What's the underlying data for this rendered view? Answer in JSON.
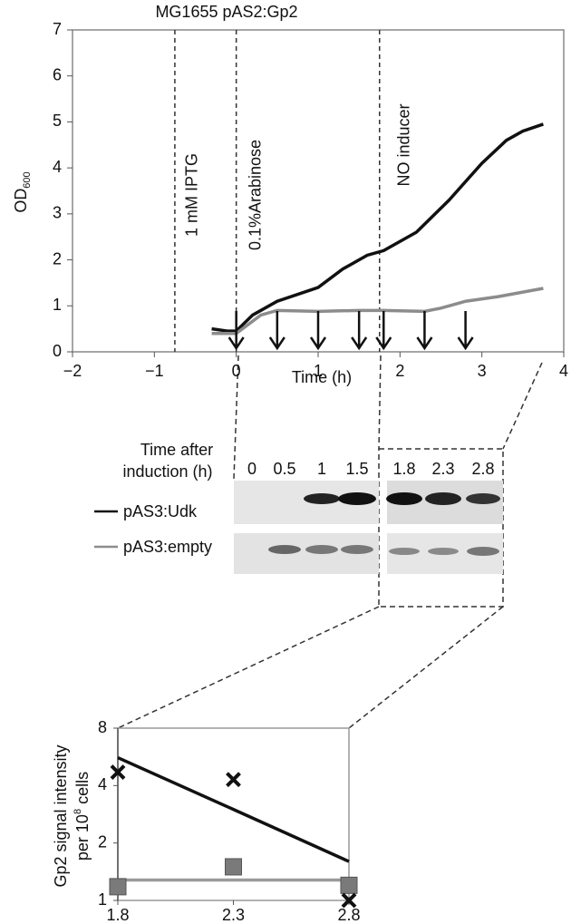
{
  "chart_data": [
    {
      "type": "line",
      "title": "MG1655 pAS2:Gp2",
      "x_label": "Time (h)",
      "y_label": "OD",
      "y_label_subscript": "600",
      "xlim": [
        -2,
        4
      ],
      "xticks": [
        {
          "value": -2,
          "label": "−2"
        },
        {
          "value": -1,
          "label": "−1"
        },
        0,
        1,
        2,
        3,
        4
      ],
      "ylim": [
        0,
        7
      ],
      "yticks": [
        0,
        1,
        2,
        3,
        4,
        5,
        6,
        7
      ],
      "series": [
        {
          "name": "pAS3:Udk",
          "color": "#111111",
          "x": [
            -0.3,
            -0.1,
            0,
            0.2,
            0.5,
            1,
            1.3,
            1.6,
            1.8,
            2.2,
            2.6,
            3,
            3.3,
            3.5,
            3.75
          ],
          "values": [
            0.5,
            0.45,
            0.45,
            0.8,
            1.1,
            1.4,
            1.8,
            2.1,
            2.2,
            2.6,
            3.3,
            4.1,
            4.6,
            4.8,
            4.95
          ]
        },
        {
          "name": "pAS3:empty",
          "color": "#8c8c8c",
          "x": [
            -0.3,
            0,
            0.3,
            0.5,
            1,
            1.5,
            1.8,
            2.3,
            2.5,
            2.8,
            3.2,
            3.75
          ],
          "values": [
            0.4,
            0.4,
            0.8,
            0.9,
            0.88,
            0.9,
            0.9,
            0.88,
            0.95,
            1.1,
            1.2,
            1.38
          ]
        }
      ],
      "annotations": [
        {
          "x": -0.75,
          "label": "1 mM IPTG"
        },
        {
          "x": 0,
          "label": "0.1%Arabinose"
        },
        {
          "x": 1.75,
          "label": "NO inducer"
        }
      ]
    },
    {
      "type": "scatter",
      "log_scale_y": true,
      "y_label": "Gp2 signal intensity",
      "y_label_2": "per 10",
      "y_label_2_superscript": "8",
      "y_label_2_end": "cells",
      "x": [
        1.8,
        2.3,
        2.8
      ],
      "xlim": [
        1.8,
        2.8
      ],
      "xticks": [
        1.8,
        2.3,
        2.8
      ],
      "ylim": [
        1,
        8
      ],
      "yticks": [
        1,
        2,
        4,
        8
      ],
      "series": [
        {
          "color": "#9a9a9a",
          "marker": "line",
          "values": [
            1.28,
            1.28,
            1.28
          ]
        },
        {
          "color": "#111111",
          "marker": "line",
          "values": [
            5.6,
            3.0,
            1.6
          ]
        },
        {
          "color": "#7a7a7a",
          "marker": "square",
          "values": [
            1.18,
            1.5,
            1.2
          ]
        },
        {
          "color": "#111111",
          "marker": "x",
          "values": [
            4.7,
            4.3,
            1.0
          ]
        }
      ]
    }
  ],
  "blot": {
    "header": [
      "Time after",
      "induction (h)"
    ],
    "lanes": [
      0,
      0.5,
      1,
      1.5,
      1.8,
      2.3,
      2.8
    ]
  }
}
